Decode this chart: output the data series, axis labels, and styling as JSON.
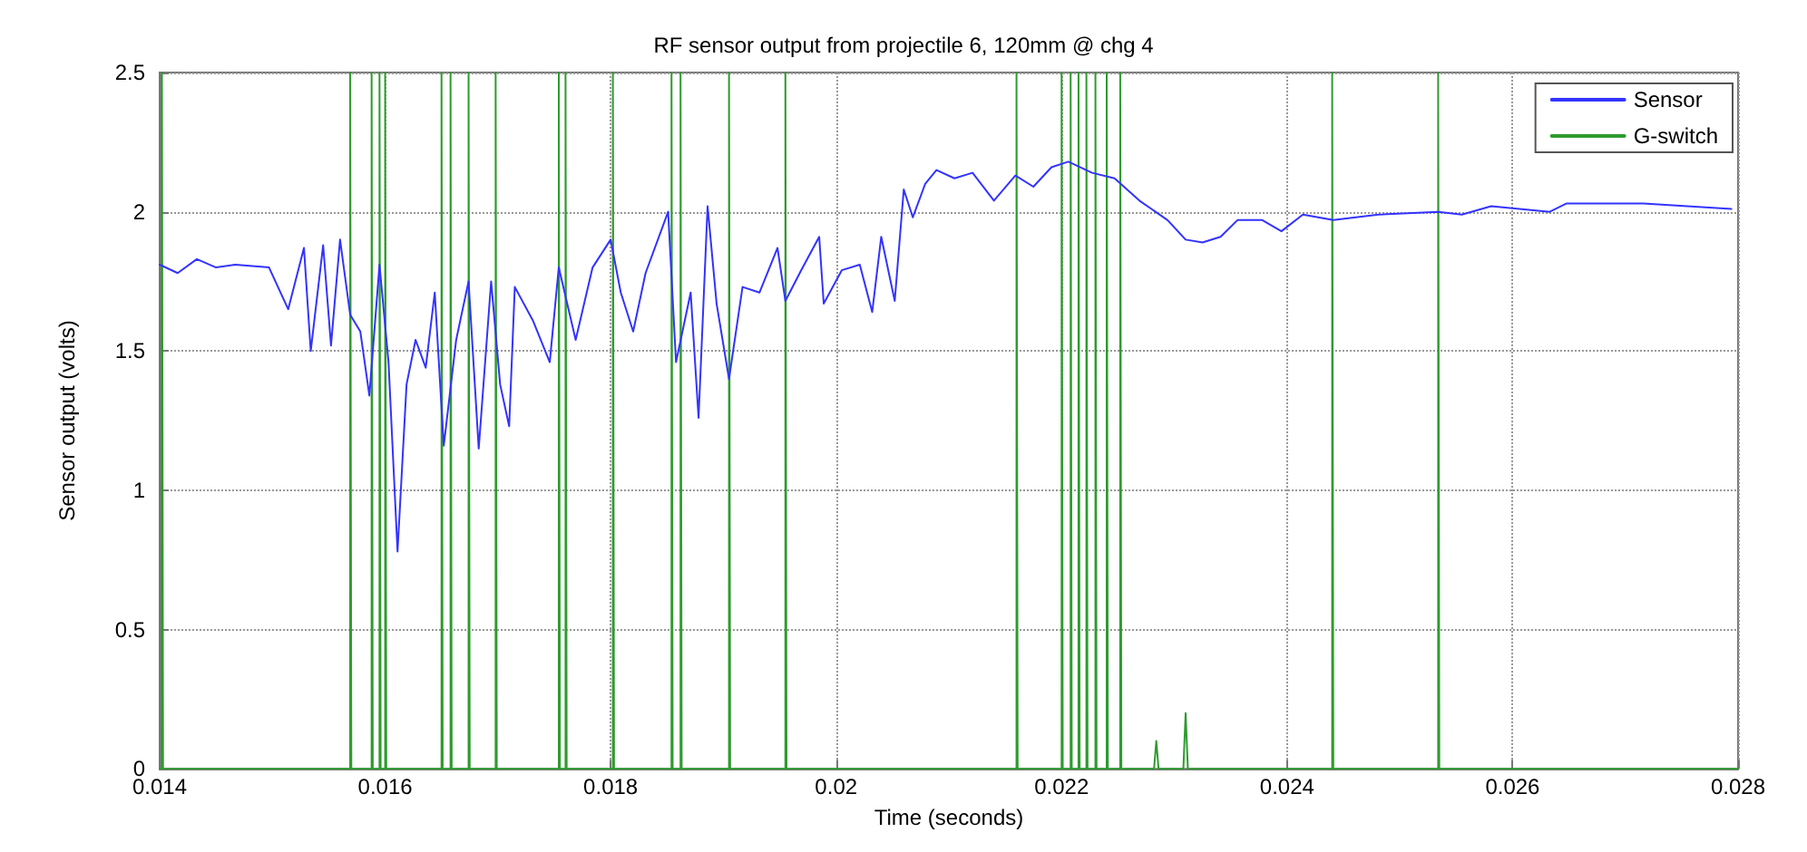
{
  "chart_data": {
    "type": "line",
    "title": "RF sensor output from projectile 6, 120mm @ chg 4",
    "xlabel": "Time (seconds)",
    "ylabel": "Sensor output (volts)",
    "xlim": [
      0.014,
      0.028
    ],
    "xticks": [
      0.014,
      0.016,
      0.018,
      0.02,
      0.022,
      0.024,
      0.026,
      0.028
    ],
    "ylim": [
      0,
      2.5
    ],
    "yticks": [
      0,
      0.5,
      1,
      1.5,
      2,
      2.5
    ],
    "grid": true,
    "legend": "top right",
    "marker": "none",
    "line_style": "solid",
    "series": [
      {
        "name": "Sensor",
        "color": "#3333ff",
        "x": [
          0.014,
          0.01416,
          0.01433,
          0.0145,
          0.01467,
          0.01497,
          0.01514,
          0.01528,
          0.01534,
          0.01545,
          0.01552,
          0.0156,
          0.01569,
          0.01578,
          0.01586,
          0.01595,
          0.01603,
          0.01611,
          0.01619,
          0.01627,
          0.01636,
          0.01644,
          0.01652,
          0.01663,
          0.01674,
          0.01683,
          0.01694,
          0.01702,
          0.0171,
          0.01715,
          0.01731,
          0.01746,
          0.01754,
          0.01769,
          0.01784,
          0.018,
          0.01809,
          0.0182,
          0.01831,
          0.01851,
          0.01858,
          0.01871,
          0.01878,
          0.01886,
          0.01894,
          0.01905,
          0.01917,
          0.01932,
          0.01948,
          0.01955,
          0.01969,
          0.01985,
          0.01989,
          0.02005,
          0.02021,
          0.02032,
          0.0204,
          0.02052,
          0.0206,
          0.02068,
          0.02079,
          0.02089,
          0.02105,
          0.02121,
          0.0214,
          0.02159,
          0.02175,
          0.02191,
          0.02206,
          0.02227,
          0.02247,
          0.02269,
          0.02294,
          0.0231,
          0.02325,
          0.02341,
          0.02356,
          0.02378,
          0.02395,
          0.02414,
          0.02441,
          0.02481,
          0.02534,
          0.02555,
          0.02581,
          0.02633,
          0.02648,
          0.02716,
          0.02794
        ],
        "values": [
          1.81,
          1.78,
          1.83,
          1.8,
          1.81,
          1.8,
          1.65,
          1.87,
          1.5,
          1.88,
          1.52,
          1.9,
          1.63,
          1.57,
          1.34,
          1.81,
          1.46,
          0.78,
          1.38,
          1.54,
          1.44,
          1.71,
          1.16,
          1.54,
          1.75,
          1.15,
          1.75,
          1.38,
          1.23,
          1.73,
          1.61,
          1.46,
          1.8,
          1.54,
          1.8,
          1.9,
          1.71,
          1.57,
          1.78,
          2.0,
          1.46,
          1.71,
          1.26,
          2.02,
          1.67,
          1.4,
          1.73,
          1.71,
          1.87,
          1.68,
          1.79,
          1.91,
          1.67,
          1.79,
          1.81,
          1.64,
          1.91,
          1.68,
          2.08,
          1.98,
          2.1,
          2.15,
          2.12,
          2.14,
          2.04,
          2.13,
          2.09,
          2.16,
          2.18,
          2.14,
          2.12,
          2.04,
          1.97,
          1.9,
          1.89,
          1.91,
          1.97,
          1.97,
          1.93,
          1.99,
          1.97,
          1.99,
          2.0,
          1.99,
          2.02,
          2.0,
          2.03,
          2.03,
          2.01
        ]
      },
      {
        "name": "G-switch",
        "color": "#2e9b2e",
        "x": [
          0.014,
          0.01402,
          0.01402,
          0.01403,
          0.01403,
          0.01569,
          0.01569,
          0.0157,
          0.0157,
          0.01588,
          0.01588,
          0.01589,
          0.01589,
          0.01595,
          0.01595,
          0.01596,
          0.01596,
          0.016,
          0.016,
          0.01601,
          0.01601,
          0.0165,
          0.0165,
          0.01651,
          0.01651,
          0.01658,
          0.01658,
          0.01659,
          0.01659,
          0.01674,
          0.01674,
          0.01675,
          0.01675,
          0.01698,
          0.01698,
          0.01699,
          0.01699,
          0.01754,
          0.01754,
          0.01755,
          0.01755,
          0.0176,
          0.0176,
          0.01761,
          0.01761,
          0.01802,
          0.01802,
          0.01803,
          0.01803,
          0.01854,
          0.01854,
          0.01855,
          0.01855,
          0.01862,
          0.01862,
          0.01863,
          0.01863,
          0.01905,
          0.01905,
          0.01906,
          0.01906,
          0.01955,
          0.01955,
          0.01956,
          0.01956,
          0.0216,
          0.0216,
          0.02161,
          0.02161,
          0.022,
          0.022,
          0.02201,
          0.02201,
          0.02208,
          0.02208,
          0.02209,
          0.02209,
          0.02215,
          0.02215,
          0.02216,
          0.02216,
          0.02222,
          0.02222,
          0.02223,
          0.02223,
          0.0223,
          0.0223,
          0.02231,
          0.02231,
          0.0224,
          0.0224,
          0.02241,
          0.02241,
          0.02252,
          0.02252,
          0.02253,
          0.02253,
          0.02282,
          0.02284,
          0.02286,
          0.02308,
          0.0231,
          0.02312,
          0.0244,
          0.0244,
          0.02441,
          0.02441,
          0.02534,
          0.02534,
          0.02535,
          0.02535,
          0.028
        ],
        "values": [
          0,
          0,
          2.5,
          2.5,
          0,
          0,
          2.5,
          2.5,
          0,
          0,
          2.5,
          2.5,
          0,
          0,
          2.5,
          2.5,
          0,
          0,
          2.5,
          2.5,
          0,
          0,
          2.5,
          2.5,
          0,
          0,
          2.5,
          2.5,
          0,
          0,
          2.5,
          2.5,
          0,
          0,
          2.5,
          2.5,
          0,
          0,
          2.5,
          2.5,
          0,
          0,
          2.5,
          2.5,
          0,
          0,
          2.5,
          2.5,
          0,
          0,
          2.5,
          2.5,
          0,
          0,
          2.5,
          2.5,
          0,
          0,
          2.5,
          2.5,
          0,
          0,
          2.5,
          2.5,
          0,
          0,
          2.5,
          2.5,
          0,
          0,
          2.5,
          2.5,
          0,
          0,
          2.5,
          2.5,
          0,
          0,
          2.5,
          2.5,
          0,
          0,
          2.5,
          2.5,
          0,
          0,
          2.5,
          2.5,
          0,
          0,
          2.5,
          2.5,
          0,
          0,
          2.5,
          2.5,
          0,
          0,
          0.1,
          0,
          0,
          0.2,
          0,
          0,
          2.5,
          2.5,
          0,
          0,
          2.5,
          2.5,
          0,
          0
        ]
      }
    ]
  }
}
